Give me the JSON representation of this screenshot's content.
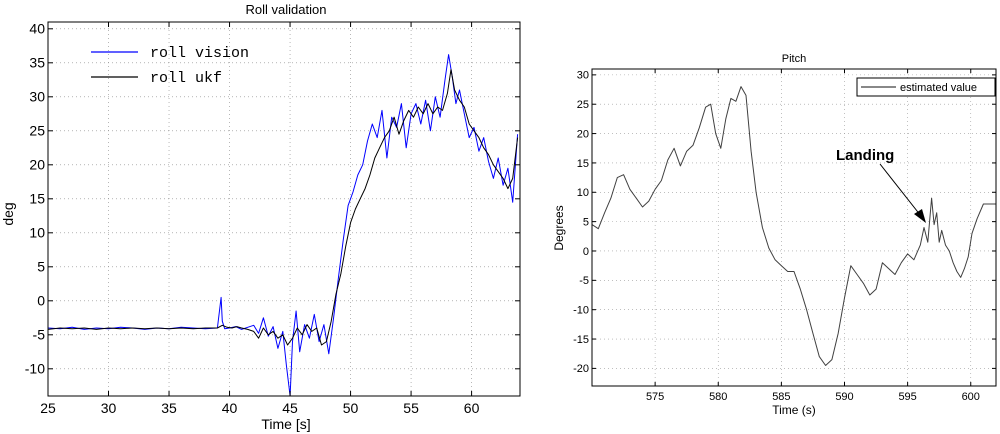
{
  "chart_data": [
    {
      "type": "line",
      "title": "Roll validation",
      "xlabel": "Time [s]",
      "ylabel": "deg",
      "xlim": [
        25,
        64
      ],
      "ylim": [
        -14,
        41
      ],
      "xticks": [
        25,
        30,
        35,
        40,
        45,
        50,
        55,
        60
      ],
      "yticks": [
        -10,
        -5,
        0,
        5,
        10,
        15,
        20,
        25,
        30,
        35,
        40
      ],
      "grid": true,
      "legend": "top-left",
      "series": [
        {
          "name": "roll vision",
          "color": "#0000ff",
          "x": [
            25.0,
            26.0,
            27.0,
            28.0,
            29.0,
            30.0,
            31.0,
            32.0,
            33.0,
            34.0,
            35.0,
            36.0,
            37.0,
            38.0,
            39.0,
            39.3,
            39.4,
            39.6,
            40.0,
            40.5,
            41.0,
            41.5,
            42.0,
            42.4,
            42.8,
            43.2,
            43.6,
            44.0,
            44.4,
            44.7,
            45.0,
            45.2,
            45.5,
            45.8,
            46.2,
            46.6,
            47.0,
            47.4,
            47.8,
            48.2,
            48.6,
            49.0,
            49.4,
            49.8,
            50.2,
            50.6,
            51.0,
            51.4,
            51.8,
            52.2,
            52.6,
            53.0,
            53.4,
            53.8,
            54.2,
            54.6,
            55.0,
            55.4,
            55.8,
            56.2,
            56.6,
            57.0,
            57.4,
            57.8,
            58.1,
            58.4,
            58.7,
            59.0,
            59.4,
            59.8,
            60.2,
            60.6,
            61.0,
            61.4,
            61.8,
            62.2,
            62.6,
            63.0,
            63.4,
            63.8
          ],
          "values": [
            -4.0,
            -4.1,
            -3.9,
            -4.2,
            -4.0,
            -4.1,
            -3.9,
            -4.0,
            -4.2,
            -4.0,
            -4.1,
            -3.9,
            -4.0,
            -4.1,
            -4.0,
            0.5,
            -3.0,
            -4.1,
            -4.0,
            -3.8,
            -4.2,
            -3.9,
            -3.6,
            -4.8,
            -2.5,
            -5.2,
            -3.8,
            -7.0,
            -4.5,
            -9.5,
            -14.0,
            -6.0,
            -1.5,
            -7.5,
            -3.5,
            -5.5,
            -2.0,
            -6.0,
            -3.5,
            -7.8,
            -2.5,
            3.5,
            9.0,
            14.0,
            16.0,
            18.5,
            20.0,
            23.5,
            26.0,
            24.0,
            28.0,
            21.0,
            27.0,
            25.5,
            29.0,
            22.5,
            27.5,
            29.0,
            26.0,
            29.5,
            25.0,
            30.0,
            27.0,
            32.5,
            36.2,
            33.0,
            29.0,
            31.0,
            27.5,
            24.0,
            25.5,
            22.0,
            24.0,
            20.5,
            18.0,
            21.0,
            17.0,
            19.5,
            14.5,
            24.5
          ]
        },
        {
          "name": "roll ukf",
          "color": "#000000",
          "x": [
            25.0,
            26.0,
            27.0,
            28.0,
            29.0,
            30.0,
            31.0,
            32.0,
            33.0,
            34.0,
            35.0,
            36.0,
            37.0,
            38.0,
            39.0,
            39.4,
            39.8,
            40.2,
            40.6,
            41.0,
            41.5,
            42.0,
            42.4,
            42.8,
            43.2,
            43.6,
            44.0,
            44.4,
            44.8,
            45.2,
            45.6,
            46.0,
            46.4,
            46.8,
            47.2,
            47.6,
            48.0,
            48.4,
            48.8,
            49.2,
            49.6,
            50.0,
            50.4,
            50.8,
            51.2,
            51.6,
            52.0,
            52.4,
            52.8,
            53.2,
            53.6,
            54.0,
            54.4,
            54.8,
            55.2,
            55.6,
            56.0,
            56.4,
            56.8,
            57.2,
            57.6,
            58.0,
            58.3,
            58.6,
            59.0,
            59.4,
            59.8,
            60.2,
            60.6,
            61.0,
            61.4,
            61.8,
            62.2,
            62.6,
            63.0,
            63.4,
            63.8
          ],
          "values": [
            -4.2,
            -4.0,
            -4.1,
            -4.0,
            -4.2,
            -4.0,
            -4.1,
            -4.0,
            -4.1,
            -4.0,
            -4.1,
            -4.0,
            -4.1,
            -4.0,
            -4.0,
            -3.6,
            -3.9,
            -4.0,
            -3.8,
            -4.0,
            -4.2,
            -4.5,
            -5.5,
            -4.0,
            -5.0,
            -4.5,
            -5.5,
            -5.0,
            -6.5,
            -5.5,
            -4.0,
            -5.0,
            -3.5,
            -4.5,
            -4.0,
            -6.5,
            -6.0,
            -3.0,
            1.0,
            4.0,
            8.0,
            11.5,
            13.5,
            15.0,
            16.5,
            18.5,
            21.0,
            22.5,
            24.0,
            25.0,
            27.0,
            24.5,
            26.5,
            28.0,
            27.0,
            28.5,
            27.5,
            29.0,
            27.5,
            28.5,
            28.0,
            30.5,
            34.0,
            31.0,
            29.5,
            28.5,
            26.0,
            25.0,
            24.0,
            22.5,
            21.5,
            20.0,
            19.0,
            18.0,
            16.5,
            18.0,
            24.0
          ]
        }
      ]
    },
    {
      "type": "line",
      "title": "Pitch",
      "xlabel": "Time (s)",
      "ylabel": "Degrees",
      "xlim": [
        570,
        602
      ],
      "ylim": [
        -23,
        31
      ],
      "xticks": [
        575,
        580,
        585,
        590,
        595,
        600
      ],
      "yticks": [
        -20,
        -15,
        -10,
        -5,
        0,
        5,
        10,
        15,
        20,
        25,
        30
      ],
      "grid": true,
      "legend": "top-right",
      "annotation": "Landing",
      "series": [
        {
          "name": "estimated value",
          "color": "#404040",
          "x": [
            570.0,
            570.5,
            571.0,
            571.5,
            572.0,
            572.5,
            573.0,
            573.5,
            574.0,
            574.5,
            575.0,
            575.5,
            576.0,
            576.5,
            577.0,
            577.5,
            578.0,
            578.5,
            579.0,
            579.4,
            579.8,
            580.2,
            580.6,
            581.0,
            581.4,
            581.8,
            582.2,
            582.6,
            583.0,
            583.5,
            584.0,
            584.5,
            585.0,
            585.5,
            586.0,
            586.5,
            587.0,
            587.5,
            588.0,
            588.5,
            589.0,
            589.5,
            590.0,
            590.5,
            591.0,
            591.5,
            592.0,
            592.5,
            593.0,
            593.5,
            594.0,
            594.5,
            595.0,
            595.5,
            596.0,
            596.3,
            596.6,
            596.9,
            597.1,
            597.3,
            597.5,
            597.7,
            598.0,
            598.3,
            598.6,
            598.9,
            599.2,
            599.5,
            599.8,
            600.1,
            600.5,
            601.0,
            601.5,
            602.0
          ],
          "values": [
            4.5,
            3.8,
            6.5,
            9.0,
            12.5,
            13.0,
            10.5,
            9.0,
            7.5,
            8.5,
            10.5,
            12.0,
            15.5,
            17.5,
            14.5,
            17.0,
            18.0,
            21.0,
            24.5,
            25.0,
            20.0,
            17.5,
            22.5,
            26.0,
            25.5,
            28.0,
            26.5,
            17.0,
            10.0,
            4.0,
            0.5,
            -1.5,
            -2.5,
            -3.5,
            -3.5,
            -6.5,
            -10.0,
            -14.0,
            -18.0,
            -19.5,
            -18.5,
            -14.0,
            -8.0,
            -2.5,
            -4.0,
            -5.5,
            -7.5,
            -6.5,
            -2.0,
            -3.0,
            -4.0,
            -2.0,
            -0.5,
            -1.5,
            1.0,
            4.0,
            1.5,
            9.0,
            4.5,
            6.5,
            1.5,
            3.5,
            1.0,
            0.0,
            -2.0,
            -3.5,
            -4.5,
            -3.0,
            -1.0,
            3.0,
            5.5,
            8.0,
            8.0,
            8.0
          ]
        }
      ]
    }
  ]
}
